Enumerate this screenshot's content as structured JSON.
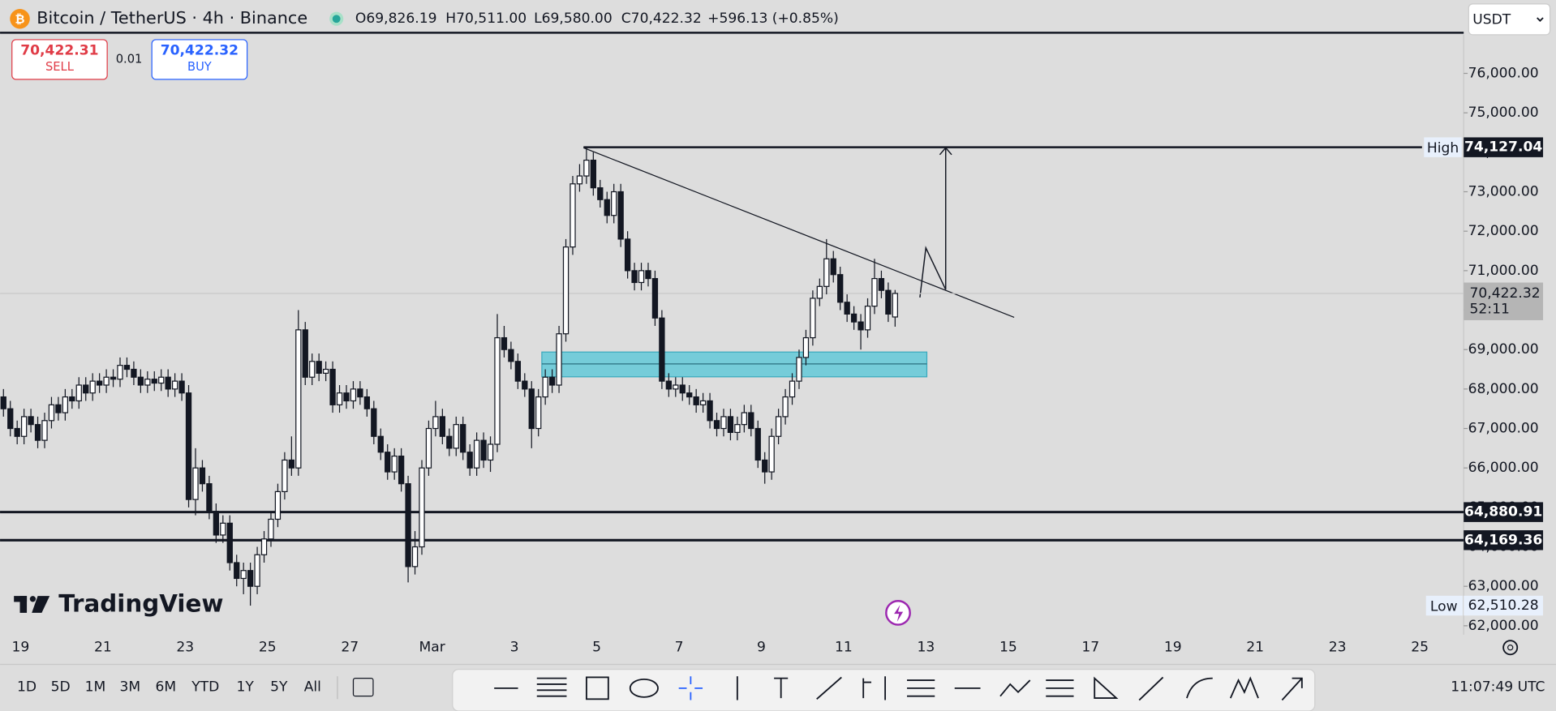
{
  "header": {
    "symbol": "Bitcoin / TetherUS · 4h · Binance",
    "ohlc": [
      "O69,826.19",
      "H70,511.00",
      "L69,580.00",
      "C70,422.32",
      "+596.13 (+0.85%)"
    ],
    "currency": "USDT"
  },
  "trade_panel": {
    "sell_price": "70,422.31",
    "sell": "SELL",
    "quantity": "0.01",
    "buy_price": "70,422.32",
    "buy": "BUY"
  },
  "watermark": "TradingView",
  "toolbar": {
    "ranges": [
      "1D",
      "5D",
      "1M",
      "3M",
      "6M",
      "YTD",
      "1Y",
      "5Y",
      "All"
    ],
    "clock": "11:07:49 UTC"
  },
  "chart_data": {
    "type": "candlestick",
    "up_color": "#ffffff",
    "down_color": "#131722",
    "wick_color": "#131722",
    "xlim": [
      0,
      213.4
    ],
    "ylim": [
      61775,
      76980
    ],
    "xticks": [
      {
        "value": 3,
        "label": "19"
      },
      {
        "value": 15,
        "label": "21"
      },
      {
        "value": 27,
        "label": "23"
      },
      {
        "value": 39,
        "label": "25"
      },
      {
        "value": 51,
        "label": "27"
      },
      {
        "value": 63,
        "label": "Mar"
      },
      {
        "value": 75,
        "label": "3"
      },
      {
        "value": 87,
        "label": "5"
      },
      {
        "value": 99,
        "label": "7"
      },
      {
        "value": 111,
        "label": "9"
      },
      {
        "value": 123,
        "label": "11"
      },
      {
        "value": 135,
        "label": "13"
      },
      {
        "value": 147,
        "label": "15"
      },
      {
        "value": 159,
        "label": "17"
      },
      {
        "value": 171,
        "label": "19"
      },
      {
        "value": 183,
        "label": "21"
      },
      {
        "value": 195,
        "label": "23"
      },
      {
        "value": 207,
        "label": "25"
      }
    ],
    "yticks": [
      {
        "value": 62000,
        "label": "62,000.00"
      },
      {
        "value": 63000,
        "label": "63,000.00"
      },
      {
        "value": 64000,
        "label": "64,000.00"
      },
      {
        "value": 65000,
        "label": "65,000.00"
      },
      {
        "value": 66000,
        "label": "66,000.00"
      },
      {
        "value": 67000,
        "label": "67,000.00"
      },
      {
        "value": 68000,
        "label": "68,000.00"
      },
      {
        "value": 69000,
        "label": "69,000.00"
      },
      {
        "value": 70000,
        "label": "70,000.00"
      },
      {
        "value": 71000,
        "label": "71,000.00"
      },
      {
        "value": 72000,
        "label": "72,000.00"
      },
      {
        "value": 73000,
        "label": "73,000.00"
      },
      {
        "value": 74000,
        "label": "74,000.00"
      },
      {
        "value": 75000,
        "label": "75,000.00"
      },
      {
        "value": 76000,
        "label": "76,000.00"
      }
    ],
    "open": [
      67800,
      67500,
      67000,
      66800,
      67300,
      67100,
      66700,
      67200,
      67600,
      67400,
      67800,
      67700,
      68100,
      67900,
      68200,
      68100,
      68300,
      68250,
      68600,
      68500,
      68300,
      68100,
      68250,
      68150,
      68300,
      68000,
      68200,
      67900,
      65200,
      66000,
      65600,
      64900,
      64300,
      64600,
      63600,
      63200,
      63400,
      63000,
      63800,
      64200,
      64700,
      65400,
      66200,
      66000,
      69500,
      68300,
      68700,
      68400,
      68500,
      67600,
      67900,
      67700,
      68000,
      67800,
      67500,
      66800,
      66400,
      65900,
      66300,
      65600,
      63500,
      64000,
      66000,
      67000,
      67300,
      66800,
      66500,
      67100,
      66400,
      66000,
      66700,
      66200,
      66600,
      69300,
      69000,
      68700,
      68200,
      68000,
      67000,
      67800,
      68300,
      68100,
      69400,
      71600,
      73200,
      73400,
      73800,
      73100,
      72800,
      72400,
      73000,
      71800,
      71000,
      70700,
      71000,
      70800,
      69800,
      68200,
      68000,
      68100,
      67900,
      67800,
      67600,
      67700,
      67200,
      67000,
      67300,
      66900,
      67100,
      67400,
      67000,
      66200,
      65900,
      66800,
      67300,
      67800,
      68200,
      68800,
      69300,
      70300,
      70600,
      71300,
      70900,
      70200,
      69900,
      69700,
      69500,
      70100,
      70800,
      70500,
      69826.19
    ],
    "high": [
      68000,
      67700,
      67200,
      67500,
      67500,
      67300,
      67400,
      67800,
      67800,
      68000,
      68000,
      68300,
      68300,
      68400,
      68400,
      68500,
      68500,
      68800,
      68800,
      68700,
      68500,
      68450,
      68450,
      68500,
      68500,
      68400,
      68400,
      68100,
      66500,
      66200,
      65800,
      65100,
      64800,
      64800,
      63800,
      63600,
      63600,
      64000,
      64400,
      64900,
      65600,
      66400,
      66800,
      70000,
      69700,
      68900,
      68900,
      68700,
      68700,
      68100,
      68100,
      68200,
      68200,
      68000,
      67700,
      67000,
      66600,
      66500,
      66500,
      65800,
      64400,
      66200,
      67200,
      67700,
      67500,
      67000,
      67300,
      67300,
      66600,
      66900,
      66900,
      66800,
      69900,
      69600,
      69200,
      68900,
      68400,
      68200,
      68000,
      68500,
      68500,
      69600,
      71800,
      73400,
      73700,
      74127.04,
      74000,
      73300,
      73000,
      73200,
      73200,
      72000,
      71200,
      71200,
      71200,
      71000,
      70000,
      68400,
      68300,
      68300,
      68100,
      68000,
      67900,
      67900,
      67400,
      67500,
      67500,
      67300,
      67600,
      67600,
      67200,
      66400,
      67000,
      67500,
      68000,
      68400,
      69000,
      69500,
      70500,
      70800,
      71800,
      71500,
      71100,
      70400,
      70100,
      69900,
      70300,
      71300,
      71000,
      70700,
      70511
    ],
    "low": [
      67300,
      66800,
      66600,
      66600,
      66900,
      66500,
      66500,
      67000,
      67200,
      67200,
      67500,
      67500,
      67700,
      67700,
      67900,
      67900,
      68050,
      68050,
      68300,
      68100,
      67900,
      67900,
      67950,
      67950,
      67800,
      67800,
      67700,
      65000,
      64800,
      65400,
      64700,
      64100,
      64100,
      63400,
      63000,
      62800,
      62510.28,
      62800,
      63600,
      64000,
      64500,
      65200,
      65800,
      65800,
      68100,
      68100,
      68200,
      68200,
      67400,
      67400,
      67500,
      67500,
      67600,
      67300,
      66600,
      66200,
      65700,
      65700,
      65400,
      63100,
      63300,
      63800,
      65800,
      66800,
      66600,
      66300,
      66300,
      66200,
      65800,
      65800,
      66000,
      65900,
      66400,
      68800,
      68500,
      68000,
      67800,
      66500,
      66800,
      67600,
      67900,
      67900,
      69200,
      71400,
      73000,
      73200,
      72900,
      72600,
      72200,
      72200,
      71600,
      70800,
      70500,
      70500,
      70600,
      69600,
      68000,
      67800,
      67800,
      67700,
      67600,
      67400,
      67400,
      67000,
      66800,
      66800,
      66700,
      66700,
      66900,
      66800,
      66000,
      65600,
      65700,
      66600,
      67100,
      67600,
      68000,
      68600,
      69100,
      70100,
      70400,
      70700,
      70000,
      69700,
      69500,
      69000,
      69300,
      69900,
      70300,
      69700,
      69580
    ],
    "close": [
      67500,
      67000,
      66800,
      67300,
      67100,
      66700,
      67200,
      67600,
      67400,
      67800,
      67700,
      68100,
      67900,
      68200,
      68100,
      68300,
      68250,
      68600,
      68500,
      68300,
      68100,
      68250,
      68150,
      68300,
      68000,
      68200,
      67900,
      65200,
      66000,
      65600,
      64900,
      64300,
      64600,
      63600,
      63200,
      63400,
      63000,
      63800,
      64200,
      64700,
      65400,
      66200,
      66000,
      69500,
      68300,
      68700,
      68400,
      68500,
      67600,
      67900,
      67700,
      68000,
      67800,
      67500,
      66800,
      66400,
      65900,
      66300,
      65600,
      63500,
      64000,
      66000,
      67000,
      67300,
      66800,
      66500,
      67100,
      66400,
      66000,
      66700,
      66200,
      66600,
      69300,
      69000,
      68700,
      68200,
      68000,
      67000,
      67800,
      68300,
      68100,
      69400,
      71600,
      73200,
      73400,
      73800,
      73100,
      72800,
      72400,
      73000,
      71800,
      71000,
      70700,
      71000,
      70800,
      69800,
      68200,
      68000,
      68100,
      67900,
      67800,
      67600,
      67700,
      67200,
      67000,
      67300,
      66900,
      67100,
      67400,
      67000,
      66200,
      65900,
      66800,
      67300,
      67800,
      68200,
      68800,
      69300,
      70300,
      70600,
      71300,
      70900,
      70200,
      69900,
      69700,
      69500,
      70100,
      70800,
      70500,
      69900,
      70422.32
    ],
    "high_marker": {
      "name": "High",
      "value": 74127.04,
      "label": "74,127.04"
    },
    "low_marker": {
      "name": "Low",
      "value": 62510.28,
      "label": "62,510.28"
    },
    "levels": [
      {
        "value": 64880.91,
        "label": "64,880.91"
      },
      {
        "value": 64169.36,
        "label": "64,169.36"
      }
    ],
    "last_price": {
      "value": 70422.32,
      "label": "70,422.32",
      "countdown": "52:11"
    }
  }
}
